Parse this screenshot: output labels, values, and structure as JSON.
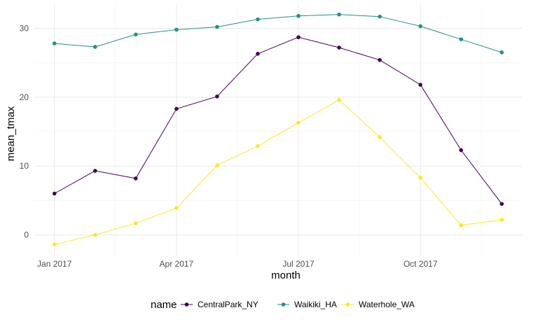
{
  "chart_data": {
    "type": "line",
    "title": "",
    "xlabel": "month",
    "ylabel": "mean_tmax",
    "x": [
      "2017-01",
      "2017-02",
      "2017-03",
      "2017-04",
      "2017-05",
      "2017-06",
      "2017-07",
      "2017-08",
      "2017-09",
      "2017-10",
      "2017-11",
      "2017-12"
    ],
    "xticks": [
      {
        "x": "2017-01",
        "label": "Jan 2017"
      },
      {
        "x": "2017-04",
        "label": "Apr 2017"
      },
      {
        "x": "2017-07",
        "label": "Jul 2017"
      },
      {
        "x": "2017-10",
        "label": "Oct 2017"
      }
    ],
    "yticks": [
      0,
      10,
      20,
      30
    ],
    "ylim": [
      -3.2,
      33.5
    ],
    "grid": true,
    "legend": {
      "title": "name",
      "position": "bottom"
    },
    "series": [
      {
        "name": "CentralPark_NY",
        "color": "#440154",
        "values": [
          6.0,
          9.3,
          8.2,
          18.3,
          20.1,
          26.3,
          28.7,
          27.2,
          25.4,
          21.8,
          12.3,
          4.5
        ]
      },
      {
        "name": "Waikiki_HA",
        "color": "#21908C",
        "values": [
          27.8,
          27.3,
          29.1,
          29.8,
          30.2,
          31.3,
          31.8,
          32.0,
          31.7,
          30.3,
          28.4,
          26.5
        ]
      },
      {
        "name": "Waterhole_WA",
        "color": "#FDE725",
        "values": [
          -1.4,
          0.0,
          1.7,
          3.9,
          10.1,
          12.9,
          16.3,
          19.6,
          14.2,
          8.3,
          1.4,
          2.2
        ]
      }
    ]
  }
}
